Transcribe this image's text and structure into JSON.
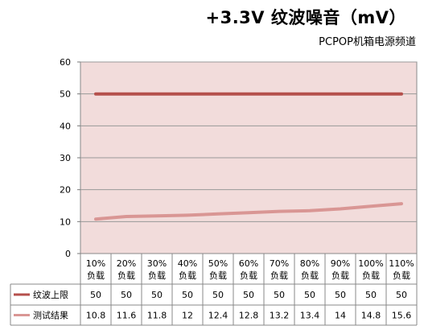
{
  "chart_data": {
    "type": "line",
    "title": "+3.3V 纹波噪音（mV）",
    "subtitle": "PCPOP机箱电源频道",
    "categories": [
      "10%负载",
      "20%负载",
      "30%负载",
      "40%负载",
      "50%负载",
      "60%负载",
      "70%负载",
      "80%负载",
      "90%负载",
      "100%负载",
      "110%负载"
    ],
    "category_lines": [
      [
        "10%",
        "负载"
      ],
      [
        "20%",
        "负载"
      ],
      [
        "30%",
        "负载"
      ],
      [
        "40%",
        "负载"
      ],
      [
        "50%",
        "负载"
      ],
      [
        "60%",
        "负载"
      ],
      [
        "70%",
        "负载"
      ],
      [
        "80%",
        "负载"
      ],
      [
        "90%",
        "负载"
      ],
      [
        "100%",
        "负载"
      ],
      [
        "110%",
        "负载"
      ]
    ],
    "series": [
      {
        "name": "纹波上限",
        "values": [
          50,
          50,
          50,
          50,
          50,
          50,
          50,
          50,
          50,
          50,
          50
        ],
        "color": "#b5504c"
      },
      {
        "name": "测试结果",
        "values": [
          10.8,
          11.6,
          11.8,
          12,
          12.4,
          12.8,
          13.2,
          13.4,
          14,
          14.8,
          15.6
        ],
        "color": "#d99694"
      }
    ],
    "ylim": [
      0,
      60
    ],
    "yticks": [
      0,
      10,
      20,
      30,
      40,
      50,
      60
    ],
    "xlabel": "",
    "ylabel": "",
    "grid": true,
    "legend": "data-table-below",
    "plot_background": "#f2dcdb"
  }
}
